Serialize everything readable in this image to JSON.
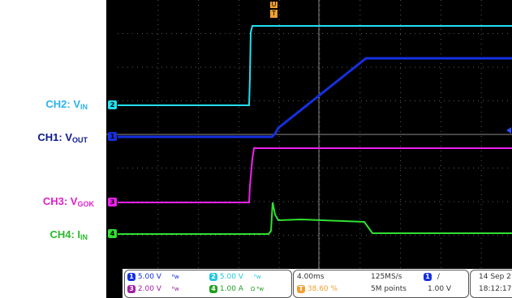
{
  "labels": {
    "ch2": {
      "main": "CH2: V",
      "sub": "IN",
      "color": "#2ab3e6"
    },
    "ch1": {
      "main": "CH1: V",
      "sub": "OUT",
      "color": "#0d1a8a"
    },
    "ch3": {
      "main": "CH3: V",
      "sub": "GOK",
      "color": "#e020c8"
    },
    "ch4": {
      "main": "CH4: I",
      "sub": "IN",
      "color": "#2cb82c"
    }
  },
  "markers": {
    "ch2": "2",
    "ch1": "1",
    "ch3": "3",
    "ch4": "4",
    "trigger": "T",
    "trigger_top": "U"
  },
  "trace_colors": {
    "ch1": "#1530e0",
    "ch2": "#22e0f0",
    "ch3": "#f020f0",
    "ch4": "#30e030"
  },
  "status": {
    "ch1": {
      "num": "1",
      "scale": "5.00 V",
      "color": "#1530e0"
    },
    "ch2": {
      "num": "2",
      "scale": "5.00 V",
      "color": "#22c8e0"
    },
    "ch3": {
      "num": "3",
      "scale": "2.00 V",
      "color": "#a020a0"
    },
    "ch4": {
      "num": "4",
      "scale": "1.00 A",
      "color": "#20a020"
    },
    "timebase": "4.00ms",
    "trigger_pos": "38.60 %",
    "sample_rate": "125MS/s",
    "record_length": "5M points",
    "trigger_channel": "1",
    "trigger_slope": "/",
    "trigger_level": "1.00 V",
    "date": "14 Sep 2",
    "time": "18:12:17"
  }
}
